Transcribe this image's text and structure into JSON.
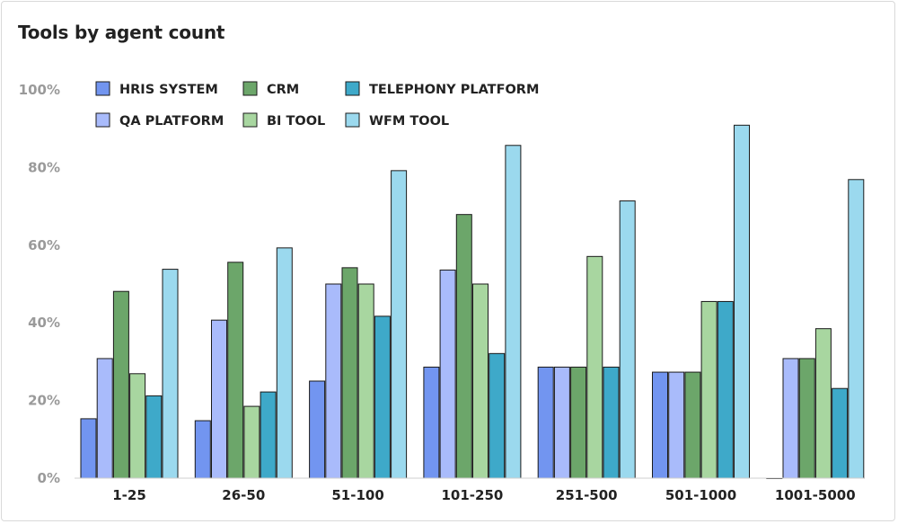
{
  "title": "Tools by agent count",
  "colors": {
    "HRIS SYSTEM": "#7295f0",
    "QA PLATFORM": "#a9bbfb",
    "CRM": "#6ca66a",
    "BI TOOL": "#a8d6a0",
    "TELEPHONY PLATFORM": "#3ea9c9",
    "WFM TOOL": "#9bd9ee"
  },
  "chart_data": {
    "type": "bar",
    "title": "Tools by agent count",
    "xlabel": "",
    "ylabel": "",
    "ylim": [
      0,
      100
    ],
    "yticks": [
      "0%",
      "20%",
      "40%",
      "60%",
      "80%",
      "100%"
    ],
    "grid": false,
    "legend_position": "top-left",
    "categories": [
      "1-25",
      "26-50",
      "51-100",
      "101-250",
      "251-500",
      "501-1000",
      "1001-5000"
    ],
    "series": [
      {
        "name": "HRIS SYSTEM",
        "values": [
          15.3,
          14.8,
          25.0,
          28.6,
          28.6,
          27.3,
          0
        ]
      },
      {
        "name": "QA PLATFORM",
        "values": [
          30.8,
          40.7,
          50.0,
          53.6,
          28.6,
          27.3,
          30.8
        ]
      },
      {
        "name": "CRM",
        "values": [
          48.1,
          55.6,
          54.2,
          67.9,
          28.6,
          27.3,
          30.8
        ]
      },
      {
        "name": "BI TOOL",
        "values": [
          26.9,
          18.5,
          50.0,
          50.0,
          57.1,
          45.5,
          38.5
        ]
      },
      {
        "name": "TELEPHONY PLATFORM",
        "values": [
          21.2,
          22.2,
          41.7,
          32.1,
          28.6,
          45.5,
          23.1
        ]
      },
      {
        "name": "WFM TOOL",
        "values": [
          53.8,
          59.3,
          79.2,
          85.7,
          71.4,
          90.9,
          76.9
        ]
      }
    ]
  }
}
